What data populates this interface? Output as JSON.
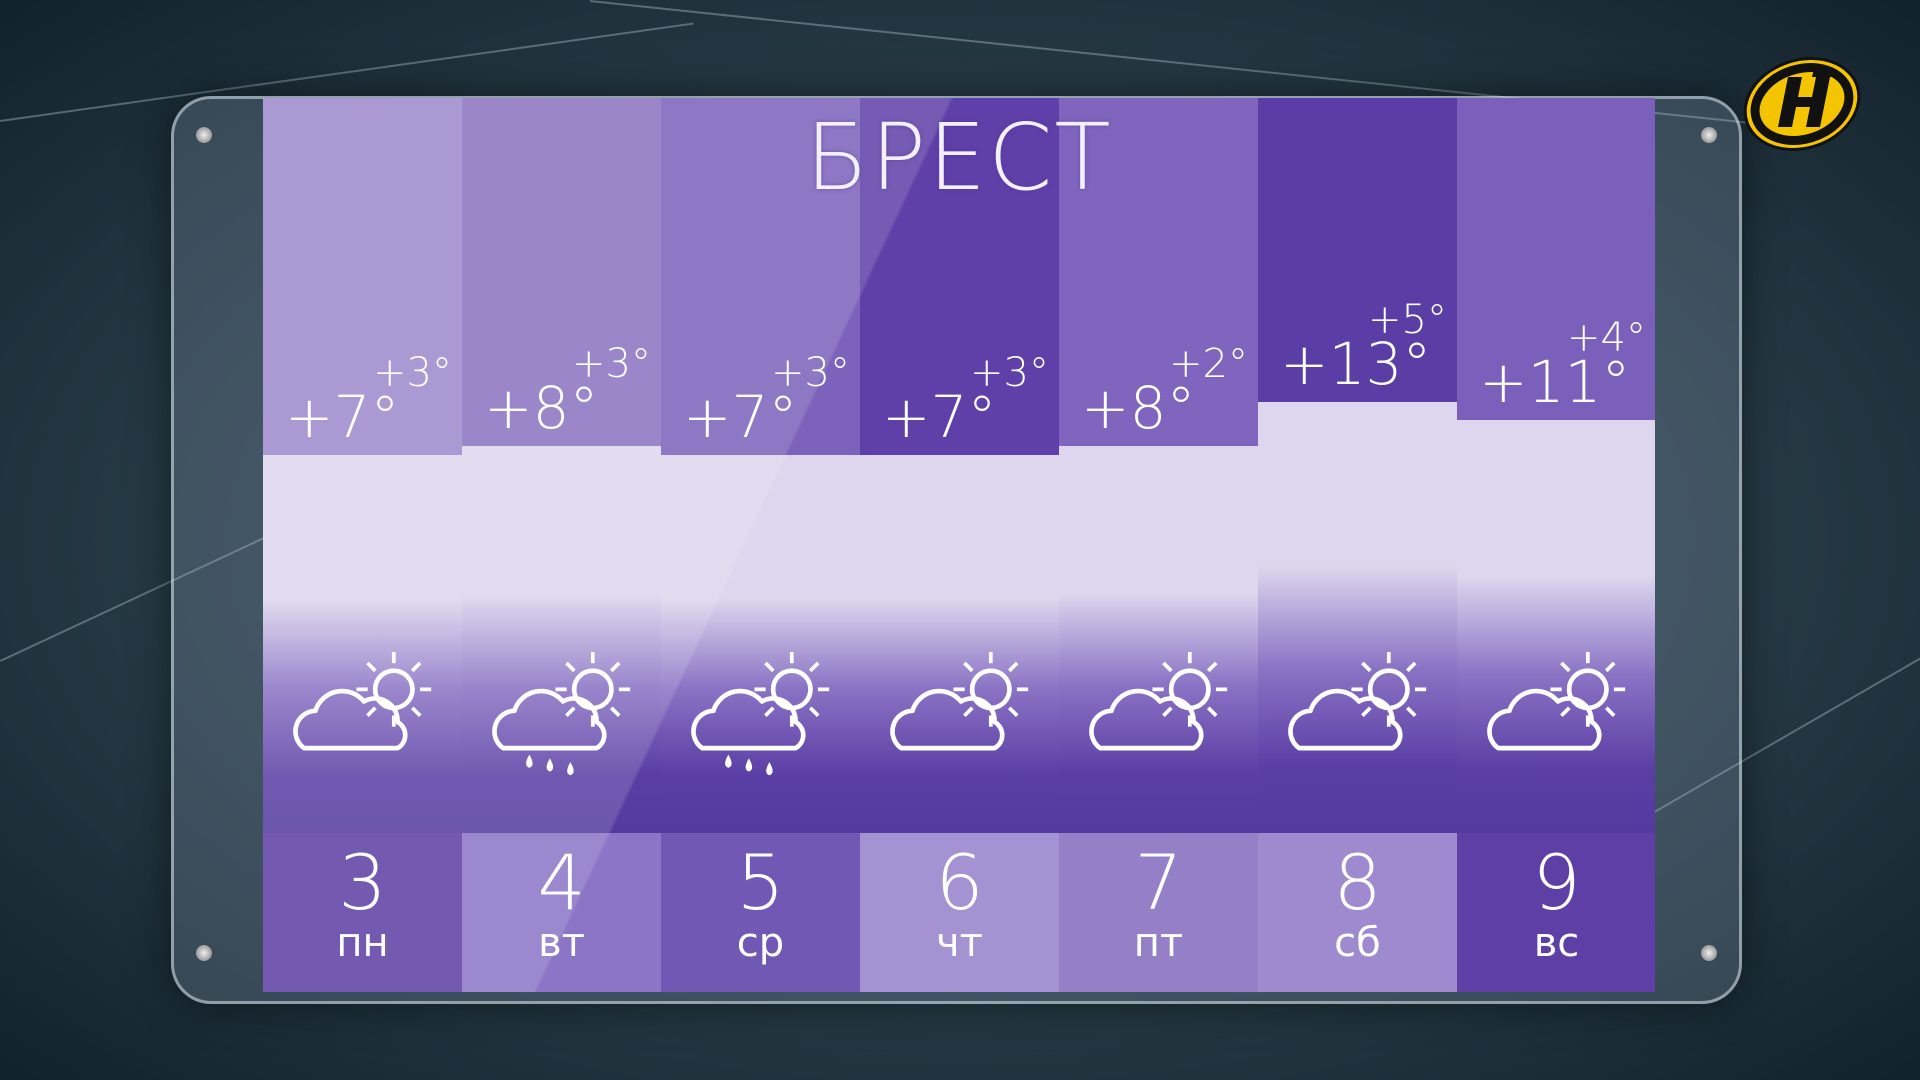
{
  "city": "БРЕСТ",
  "days": [
    {
      "day": "3",
      "weekday": "пн",
      "day_temp": "+7°",
      "night_temp": "+3°",
      "max": 7,
      "icon": "partly-cloudy-icon",
      "top_color": "#9d88cc",
      "day_color": "#5c3fa3"
    },
    {
      "day": "4",
      "weekday": "вт",
      "day_temp": "+8°",
      "night_temp": "+3°",
      "max": 8,
      "icon": "rain-sun-icon",
      "top_color": "#8a72c0",
      "day_color": "#8c74c6"
    },
    {
      "day": "5",
      "weekday": "ср",
      "day_temp": "+7°",
      "night_temp": "+3°",
      "max": 7,
      "icon": "rain-sun-icon",
      "top_color": "#7c62bb",
      "day_color": "#7258b5"
    },
    {
      "day": "6",
      "weekday": "чт",
      "day_temp": "+7°",
      "night_temp": "+3°",
      "max": 7,
      "icon": "partly-cloudy-icon",
      "top_color": "#5e40a8",
      "day_color": "#a592d2"
    },
    {
      "day": "7",
      "weekday": "пт",
      "day_temp": "+8°",
      "night_temp": "+2°",
      "max": 8,
      "icon": "partly-cloudy-icon",
      "top_color": "#7f65bd",
      "day_color": "#9580c8"
    },
    {
      "day": "8",
      "weekday": "сб",
      "day_temp": "+13°",
      "night_temp": "+5°",
      "max": 13,
      "icon": "partly-cloudy-icon",
      "top_color": "#5a3ea6",
      "day_color": "#9f8ad0"
    },
    {
      "day": "9",
      "weekday": "вс",
      "day_temp": "+11°",
      "night_temp": "+4°",
      "max": 11,
      "icon": "partly-cloudy-icon",
      "top_color": "#7a5fbb",
      "day_color": "#5d3fa5"
    }
  ],
  "logo_text": "Н",
  "logo_colors": {
    "ring": "#f5c400",
    "dark": "#111111"
  }
}
